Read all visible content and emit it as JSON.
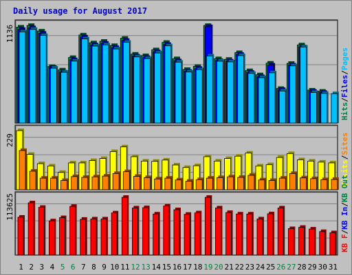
{
  "chart_data": {
    "title": "Daily usage for August 2017",
    "categories": [
      "1",
      "2",
      "3",
      "4",
      "5",
      "6",
      "7",
      "8",
      "9",
      "10",
      "11",
      "12",
      "13",
      "14",
      "15",
      "16",
      "17",
      "18",
      "19",
      "20",
      "21",
      "22",
      "23",
      "24",
      "25",
      "26",
      "27",
      "28",
      "29",
      "30",
      "31"
    ],
    "weekend_days": [
      "5",
      "6",
      "12",
      "13",
      "19",
      "20",
      "26",
      "27"
    ],
    "colors": {
      "hits": "#008040",
      "files": "#0000ff",
      "pages": "#00c0ff",
      "visits": "#ffff00",
      "sites": "#ff8000",
      "kb_f": "#ff0000",
      "kb_in": "#0000ff",
      "kb_out": "#008040"
    },
    "panels": [
      {
        "type": "bar",
        "ymax_label": "1136",
        "ymax": 1136,
        "legend": [
          {
            "text": "Hits",
            "color": "#008040"
          },
          {
            "text": "/",
            "color": "#000000"
          },
          {
            "text": "Files",
            "color": "#0000ff"
          },
          {
            "text": "/",
            "color": "#000000"
          },
          {
            "text": "Pages",
            "color": "#00c0ff"
          }
        ],
        "series": [
          {
            "name": "Hits",
            "color": "#008040",
            "values": [
              1117,
              1136,
              1071,
              658,
              618,
              763,
              1025,
              934,
              952,
              902,
              987,
              802,
              785,
              853,
              939,
              749,
              624,
              660,
              1136,
              749,
              742,
              820,
              610,
              562,
              698,
              403,
              695,
              910,
              384,
              371,
              0
            ]
          },
          {
            "name": "Files",
            "color": "#0000ff",
            "values": [
              1090,
              1109,
              1045,
              648,
              594,
              737,
              1002,
              910,
              928,
              878,
              962,
              780,
              763,
              830,
              915,
              725,
              603,
              637,
              1122,
              728,
              722,
              800,
              590,
              540,
              675,
              390,
              676,
              888,
              370,
              357,
              0
            ]
          },
          {
            "name": "Pages",
            "color": "#00c0ff",
            "values": [
              1061,
              1090,
              1019,
              639,
              591,
              721,
              980,
              896,
              909,
              862,
              940,
              770,
              750,
              815,
              899,
              709,
              594,
              620,
              780,
              720,
              712,
              785,
              578,
              528,
              585,
              373,
              666,
              885,
              356,
              345,
              342
            ]
          }
        ]
      },
      {
        "type": "bar",
        "ymax_label": "229",
        "ymax": 229,
        "legend": [
          {
            "text": "Visits",
            "color": "#ffff00"
          },
          {
            "text": "/",
            "color": "#000000"
          },
          {
            "text": "Sites",
            "color": "#ff8000"
          }
        ],
        "series": [
          {
            "name": "Visits",
            "color": "#ffff00",
            "values": [
              229,
              137,
              101,
              92,
              67,
              104,
              104,
              113,
              121,
              148,
              166,
              128,
              111,
              110,
              115,
              96,
              86,
              93,
              128,
              111,
              121,
              130,
              142,
              92,
              97,
              125,
              140,
              116,
              111,
              107,
              104
            ]
          },
          {
            "name": "Sites",
            "color": "#ff8000",
            "values": [
              152,
              72,
              45,
              45,
              36,
              51,
              48,
              50,
              53,
              63,
              70,
              52,
              47,
              42,
              45,
              38,
              33,
              39,
              45,
              47,
              50,
              48,
              56,
              38,
              36,
              45,
              63,
              46,
              43,
              39,
              40
            ]
          }
        ]
      },
      {
        "type": "bar",
        "ymax_label": "113625",
        "ymax": 113625,
        "legend": [
          {
            "text": "KB F",
            "color": "#ff0000"
          },
          {
            "text": "/",
            "color": "#000000"
          },
          {
            "text": "KB In",
            "color": "#0000ff"
          },
          {
            "text": "/",
            "color": "#000000"
          },
          {
            "text": "KB Out",
            "color": "#008040"
          }
        ],
        "series": [
          {
            "name": "KB F",
            "color": "#ff0000",
            "values": [
              74520,
              102790,
              93830,
              67390,
              73590,
              95910,
              70480,
              71100,
              71100,
              82920,
              113625,
              92770,
              93330,
              80830,
              96520,
              89290,
              80210,
              83040,
              113625,
              92770,
              83720,
              80830,
              80830,
              71140,
              81260,
              92770,
              52030,
              54560,
              51240,
              46300,
              43830
            ]
          }
        ]
      }
    ]
  }
}
